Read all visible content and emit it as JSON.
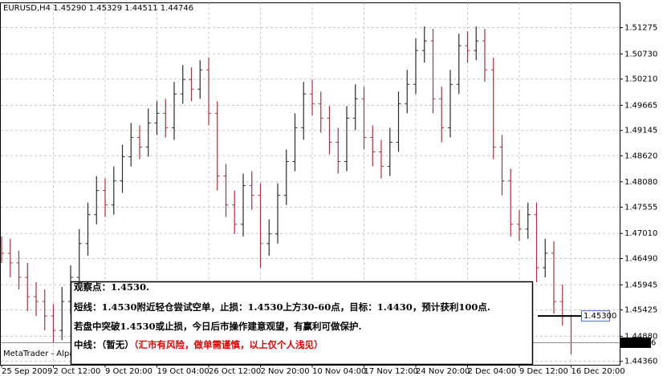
{
  "chart_data": {
    "type": "ohlc",
    "title": "EURUSD,H4  1.45290 1.45329 1.44511 1.44746",
    "categories": [
      "25 Sep 2009",
      null,
      null,
      null,
      null,
      null,
      "2 Oct 12:00",
      null,
      null,
      null,
      null,
      null,
      "9 Oct 20:00",
      null,
      null,
      null,
      null,
      null,
      "19 Oct 04:00",
      null,
      null,
      null,
      null,
      null,
      "26 Oct 12:00",
      null,
      null,
      null,
      null,
      null,
      "2 Nov 20:00",
      null,
      null,
      null,
      null,
      null,
      "10 Nov 04:00",
      null,
      null,
      null,
      null,
      null,
      "17 Nov 12:00",
      null,
      null,
      null,
      null,
      null,
      "24 Nov 20:00",
      null,
      null,
      null,
      null,
      null,
      "2 Dec 04:00",
      null,
      null,
      null,
      null,
      null,
      "9 Dec 12:00",
      null,
      null,
      null,
      null,
      null,
      "16 Dec 20:00"
    ],
    "open": [
      1.467,
      1.466,
      1.464,
      1.461,
      1.457,
      1.456,
      1.453,
      1.45,
      1.456,
      1.461,
      1.468,
      1.474,
      1.479,
      1.476,
      1.481,
      1.486,
      1.49,
      1.488,
      1.493,
      1.495,
      1.492,
      1.499,
      1.502,
      1.5,
      1.504,
      1.495,
      1.482,
      1.476,
      1.472,
      1.48,
      1.478,
      1.468,
      1.47,
      1.478,
      1.485,
      1.492,
      1.499,
      1.497,
      1.494,
      1.489,
      1.485,
      1.494,
      1.498,
      1.49,
      1.487,
      1.484,
      1.489,
      1.497,
      1.501,
      1.508,
      1.51,
      1.498,
      1.492,
      1.501,
      1.509,
      1.508,
      1.51,
      1.504,
      1.488,
      1.481,
      1.472,
      1.471,
      1.474,
      1.463,
      1.466,
      1.456,
      1.4529
    ],
    "high": [
      1.4695,
      1.469,
      1.4665,
      1.464,
      1.46,
      1.4585,
      1.4555,
      1.459,
      1.4635,
      1.471,
      1.4765,
      1.482,
      1.4815,
      1.484,
      1.4885,
      1.493,
      1.4925,
      1.496,
      1.4975,
      1.498,
      1.5015,
      1.505,
      1.5045,
      1.506,
      1.5065,
      1.4975,
      1.4845,
      1.479,
      1.4825,
      1.483,
      1.4805,
      1.473,
      1.4805,
      1.4875,
      1.495,
      1.5015,
      1.502,
      1.4995,
      1.4965,
      1.492,
      1.4965,
      1.501,
      1.5005,
      1.4925,
      1.4895,
      1.492,
      1.4995,
      1.504,
      1.5105,
      1.513,
      1.5125,
      1.5005,
      1.504,
      1.5115,
      1.512,
      1.513,
      1.5125,
      1.5065,
      1.4905,
      1.4835,
      1.475,
      1.4765,
      1.4765,
      1.469,
      1.4685,
      1.4595,
      1.45329
    ],
    "low": [
      1.464,
      1.461,
      1.4585,
      1.454,
      1.453,
      1.45,
      1.4475,
      1.448,
      1.4535,
      1.459,
      1.4655,
      1.472,
      1.4735,
      1.474,
      1.4785,
      1.484,
      1.4855,
      1.486,
      1.4905,
      1.49,
      1.4895,
      1.497,
      1.4975,
      1.498,
      1.4925,
      1.479,
      1.4735,
      1.47,
      1.4695,
      1.475,
      1.463,
      1.4655,
      1.468,
      1.476,
      1.483,
      1.4895,
      1.4945,
      1.491,
      1.4865,
      1.4825,
      1.483,
      1.4915,
      1.4875,
      1.484,
      1.4815,
      1.482,
      1.487,
      1.495,
      1.499,
      1.5055,
      1.495,
      1.489,
      1.49,
      1.499,
      1.5055,
      1.506,
      1.5015,
      1.4855,
      1.478,
      1.4695,
      1.4685,
      1.469,
      1.46,
      1.461,
      1.4535,
      1.451,
      1.44511
    ],
    "close": [
      1.466,
      1.464,
      1.461,
      1.457,
      1.456,
      1.453,
      1.45,
      1.456,
      1.461,
      1.468,
      1.474,
      1.479,
      1.476,
      1.481,
      1.486,
      1.49,
      1.488,
      1.493,
      1.495,
      1.492,
      1.499,
      1.502,
      1.5,
      1.504,
      1.495,
      1.482,
      1.476,
      1.472,
      1.48,
      1.478,
      1.468,
      1.47,
      1.478,
      1.485,
      1.492,
      1.499,
      1.497,
      1.494,
      1.489,
      1.485,
      1.494,
      1.498,
      1.49,
      1.487,
      1.484,
      1.489,
      1.497,
      1.501,
      1.508,
      1.51,
      1.498,
      1.492,
      1.501,
      1.509,
      1.508,
      1.51,
      1.504,
      1.488,
      1.481,
      1.472,
      1.471,
      1.474,
      1.463,
      1.466,
      1.456,
      1.4529,
      1.44746
    ],
    "up_color": "#2b2b2b",
    "down_color": "#a83240",
    "ylim": [
      1.4428,
      1.5179
    ],
    "yticks": [
      1.51275,
      {
        "value": 1.5073,
        "label": "1.50730"
      },
      {
        "value": 1.5021,
        "label": "1.50210"
      },
      1.49665,
      1.49145,
      {
        "value": 1.4862,
        "label": "1.48620"
      },
      {
        "value": 1.4808,
        "label": "1.48080"
      },
      1.47555,
      {
        "value": 1.4701,
        "label": "1.47010"
      },
      {
        "value": 1.4649,
        "label": "1.46490"
      },
      1.45945,
      1.45425,
      {
        "value": 1.4488,
        "label": "1.44880"
      },
      {
        "value": 1.4436,
        "label": "1.44360"
      }
    ],
    "grid": true,
    "current_price": 1.44746,
    "horizontal_line": {
      "value": 1.453,
      "label": "1.45300"
    },
    "watermark": "MetaTrader - Alpari",
    "annotation": {
      "lines": [
        "观察点：1.4530.",
        "短线：1.4530附近轻仓尝试空单，止损：1.4530上方30-60点，目标：1.4430，预计获利100点.",
        "若盘中突破1.4530或止损，今日后市操作建意观望，有赢利可做保护."
      ],
      "last_line": [
        "中线：（暂无）",
        "（汇市有风险，做单需谨慎，以上仅个人浅见）"
      ],
      "warning_color": "#e00000"
    }
  }
}
